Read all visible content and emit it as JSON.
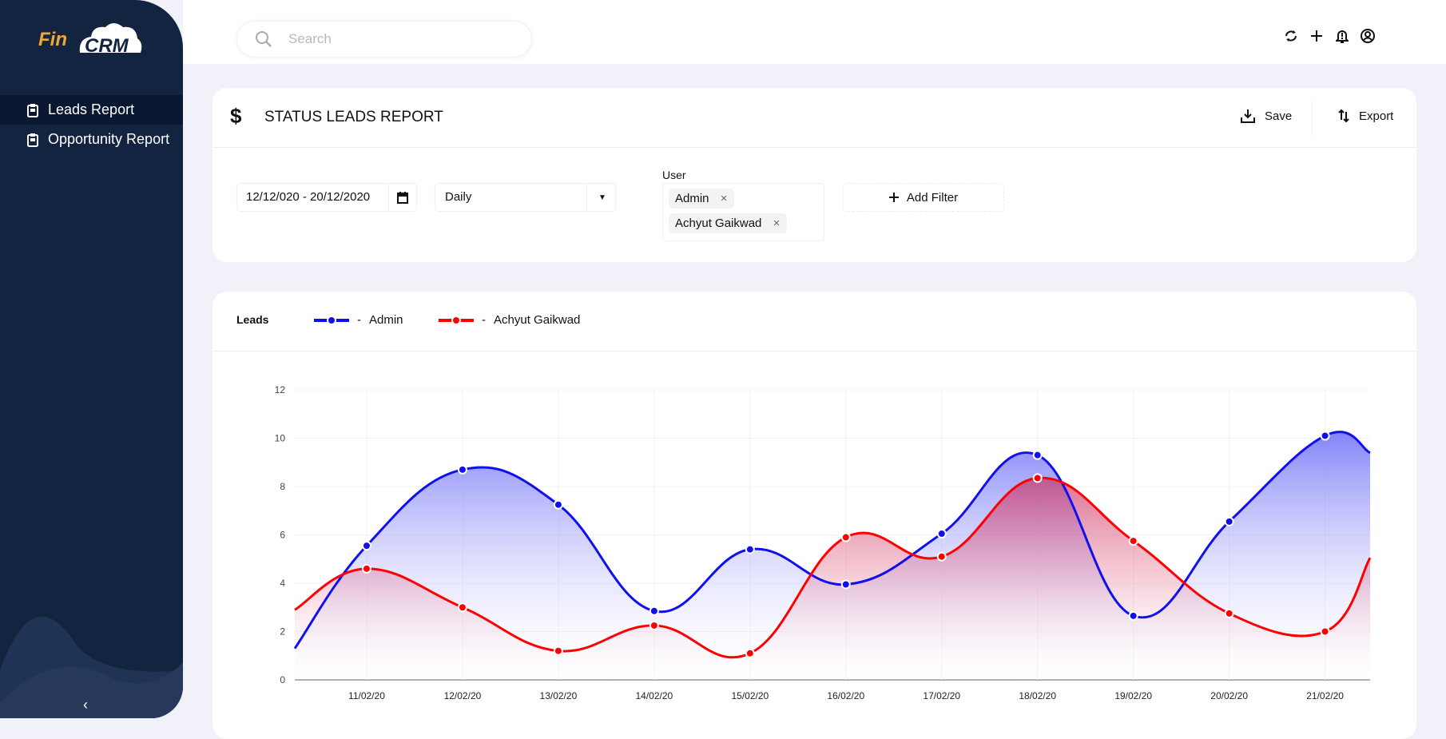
{
  "app": {
    "logo_text": "Fin CRM",
    "logo_fin": "Fin",
    "logo_crm": "CRM"
  },
  "sidebar": {
    "items": [
      {
        "label": "Leads Report",
        "active": true
      },
      {
        "label": "Opportunity Report",
        "active": false
      }
    ],
    "collapse_icon": "chevron-left-icon"
  },
  "topbar": {
    "search_placeholder": "Search",
    "icons": [
      "refresh-icon",
      "plus-icon",
      "bell-alert-icon",
      "account-circle-icon"
    ]
  },
  "report": {
    "title": "STATUS LEADS REPORT",
    "save_label": "Save",
    "export_label": "Export"
  },
  "filters": {
    "date_range": "12/12/020 - 20/12/2020",
    "interval": "Daily",
    "user_label": "User",
    "users": [
      "Admin",
      "Achyut Gaikwad"
    ],
    "add_filter_label": "Add Filter"
  },
  "chart_header": {
    "title": "Leads",
    "legend": [
      {
        "sep": "-",
        "name": "Admin"
      },
      {
        "sep": "-",
        "name": "Achyut Gaikwad"
      }
    ]
  },
  "chart_data": {
    "type": "area",
    "title": "Leads",
    "xlabel": "",
    "ylabel": "",
    "x_unit": "day of February 2020",
    "xlim": [
      10.25,
      21.47
    ],
    "ylim": [
      0,
      12
    ],
    "y_ticks": [
      0,
      2,
      4,
      6,
      8,
      10,
      12
    ],
    "x_ticks": [
      11,
      12,
      13,
      14,
      15,
      16,
      17,
      18,
      19,
      20,
      21
    ],
    "x_tick_labels": [
      "11/02/20",
      "12/02/20",
      "13/02/20",
      "14/02/20",
      "15/02/20",
      "16/02/20",
      "17/02/20",
      "18/02/20",
      "19/02/20",
      "20/02/20",
      "21/02/20"
    ],
    "grid": true,
    "legend": "top-left",
    "series": [
      {
        "name": "Admin",
        "color": "#1010ee",
        "x": [
          10.25,
          11,
          12,
          13,
          14,
          15,
          16,
          17,
          18,
          19,
          20,
          21,
          21.47
        ],
        "values": [
          1.3,
          5.55,
          8.7,
          7.25,
          2.85,
          5.4,
          3.95,
          6.05,
          9.3,
          2.65,
          6.55,
          10.1,
          9.4
        ]
      },
      {
        "name": "Achyut Gaikwad",
        "color": "#ff0000",
        "x": [
          10.25,
          11,
          12,
          13,
          14,
          15,
          16,
          17,
          18,
          19,
          20,
          21,
          21.47
        ],
        "values": [
          2.9,
          4.6,
          3.0,
          1.2,
          2.25,
          1.1,
          5.9,
          5.1,
          8.35,
          5.75,
          2.75,
          2.0,
          5.05
        ]
      }
    ]
  }
}
